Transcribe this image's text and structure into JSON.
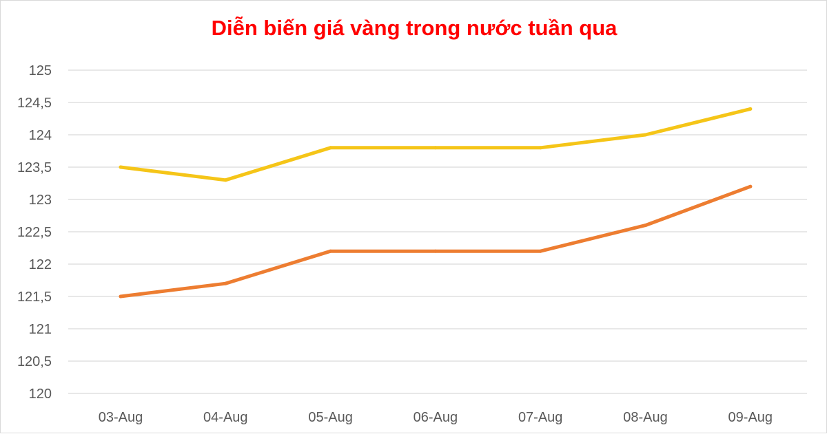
{
  "chart_data": {
    "type": "line",
    "title": "Diễn biến giá vàng trong nước tuần qua",
    "xlabel": "",
    "ylabel": "",
    "categories": [
      "03-Aug",
      "04-Aug",
      "05-Aug",
      "06-Aug",
      "07-Aug",
      "08-Aug",
      "09-Aug"
    ],
    "series": [
      {
        "color": "#f5c518",
        "values": [
          123.5,
          123.3,
          123.8,
          123.8,
          123.8,
          124.0,
          124.4
        ]
      },
      {
        "color": "#ed7d31",
        "values": [
          121.5,
          121.7,
          122.2,
          122.2,
          122.2,
          122.6,
          123.2
        ]
      }
    ],
    "ylim": [
      120,
      125
    ],
    "y_ticks": [
      "120",
      "120,5",
      "121",
      "121,5",
      "122",
      "122,5",
      "123",
      "123,5",
      "124",
      "124,5",
      "125"
    ],
    "grid": true,
    "legend": "none",
    "colors": {
      "title": "#ff0000",
      "grid": "#d9d9d9",
      "tick_text": "#595959"
    }
  }
}
